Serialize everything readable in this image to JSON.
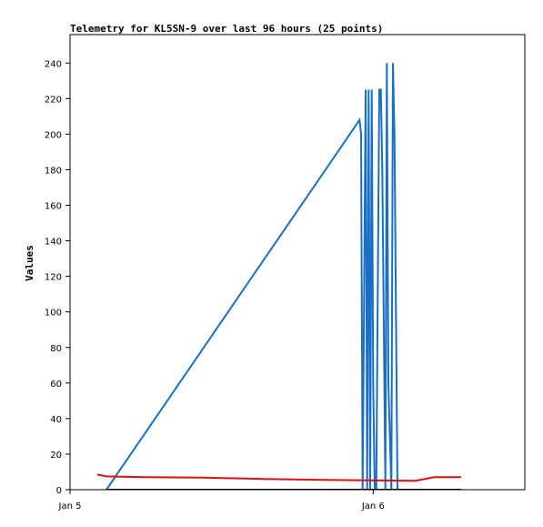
{
  "chart_data": {
    "type": "line",
    "title": "Telemetry for KL5SN-9 over last 96 hours (25 points)",
    "xlabel": "",
    "ylabel": "Values",
    "xlim": [
      0,
      1.5
    ],
    "ylim": [
      0,
      256
    ],
    "x_ticks": [
      {
        "label": "Jan 5",
        "value": 0
      },
      {
        "label": "Jan 6",
        "value": 1
      }
    ],
    "y_ticks": [
      0,
      20,
      40,
      60,
      80,
      100,
      120,
      140,
      160,
      180,
      200,
      220,
      240
    ],
    "grid": false,
    "legend": "none",
    "series": [
      {
        "color": "#1a6fc4",
        "x": [
          0.12,
          0.955,
          0.96,
          0.965,
          0.975,
          0.98,
          0.985,
          0.99,
          0.995,
          1.0,
          1.005,
          1.01,
          1.02,
          1.025,
          1.03,
          1.04,
          1.045,
          1.05,
          1.06,
          1.065,
          1.07,
          1.08,
          1.085,
          1.09,
          1.115,
          1.12
        ],
        "values": [
          0,
          208,
          200,
          0,
          225,
          0,
          225,
          0,
          225,
          60,
          0,
          0,
          225,
          225,
          180,
          0,
          240,
          60,
          0,
          240,
          200,
          0,
          0,
          0,
          0,
          0
        ]
      },
      {
        "color": "#e01010",
        "x": [
          0.09,
          0.12,
          0.25,
          0.44,
          0.64,
          0.84,
          1.14,
          1.2,
          1.29
        ],
        "values": [
          8.5,
          7.5,
          7,
          6.8,
          6,
          5.5,
          5,
          7,
          7
        ]
      },
      {
        "color": "#000000",
        "x": [
          0.12,
          1.29
        ],
        "values": [
          0,
          0
        ]
      }
    ]
  }
}
